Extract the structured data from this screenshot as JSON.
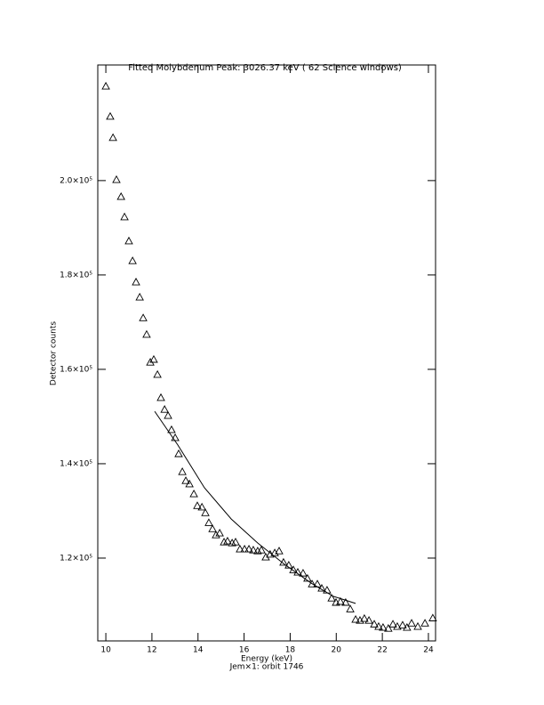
{
  "chart_data": {
    "type": "scatter",
    "title": "Fitted Molybdenum Peak:      3026.37 keV (      62 Science windows)",
    "x_label": "Energy (keV)",
    "subtitle": "Jem×1: orbit 1746",
    "y_label": "Detector counts",
    "xlim": [
      9.65,
      24.31
    ],
    "ylim": [
      102450,
      224500
    ],
    "xticks": [
      10,
      12,
      14,
      16,
      18,
      20,
      22,
      24
    ],
    "yticks": [
      {
        "value": 120000,
        "label": "1.2×10⁵"
      },
      {
        "value": 140000,
        "label": "1.4×10⁵"
      },
      {
        "value": 160000,
        "label": "1.6×10⁵"
      },
      {
        "value": 180000,
        "label": "1.8×10⁵"
      },
      {
        "value": 200000,
        "label": "2.0×10⁵"
      }
    ],
    "series": [
      {
        "marker": "triangle",
        "color": "#000000",
        "x": [
          10.0,
          10.19,
          10.31,
          10.46,
          10.66,
          10.81,
          11.0,
          11.16,
          11.31,
          11.47,
          11.62,
          11.77,
          11.93,
          12.08,
          12.24,
          12.39,
          12.55,
          12.7,
          12.85,
          13.01,
          13.16,
          13.32,
          13.47,
          13.63,
          13.82,
          13.97,
          14.17,
          14.32,
          14.47,
          14.63,
          14.78,
          14.94,
          15.13,
          15.28,
          15.48,
          15.63,
          15.82,
          16.02,
          16.21,
          16.4,
          16.59,
          16.75,
          16.94,
          17.13,
          17.33,
          17.52,
          17.71,
          17.94,
          18.14,
          18.33,
          18.56,
          18.75,
          18.95,
          19.18,
          19.37,
          19.6,
          19.8,
          19.99,
          20.18,
          20.41,
          20.61,
          20.84,
          21.03,
          21.22,
          21.42,
          21.65,
          21.84,
          22.03,
          22.26,
          22.46,
          22.65,
          22.88,
          23.07,
          23.27,
          23.54,
          23.85,
          24.19
        ],
        "values": [
          220000,
          213600,
          209100,
          200200,
          196600,
          192300,
          187200,
          183000,
          178500,
          175300,
          170900,
          167400,
          161500,
          162100,
          158900,
          154000,
          151500,
          150200,
          147200,
          145500,
          142100,
          138300,
          136400,
          135700,
          133600,
          131100,
          130800,
          129600,
          127500,
          126200,
          124900,
          125300,
          123400,
          123600,
          123200,
          123400,
          121900,
          121900,
          121900,
          121700,
          121500,
          121700,
          120200,
          120800,
          121100,
          121500,
          119100,
          118500,
          117500,
          117000,
          116800,
          115700,
          114500,
          114500,
          113600,
          113200,
          111500,
          110600,
          110800,
          110600,
          109200,
          107000,
          106800,
          107200,
          106800,
          106000,
          105500,
          105300,
          105100,
          106000,
          105500,
          105800,
          105300,
          106200,
          105500,
          106200,
          107300
        ]
      },
      {
        "marker": "line",
        "color": "#000000",
        "x": [
          12.12,
          13.12,
          14.28,
          15.44,
          16.59,
          17.75,
          18.91,
          19.87,
          20.84
        ],
        "values": [
          151100,
          144000,
          134900,
          128300,
          123200,
          118700,
          114700,
          111900,
          110400
        ]
      }
    ]
  }
}
